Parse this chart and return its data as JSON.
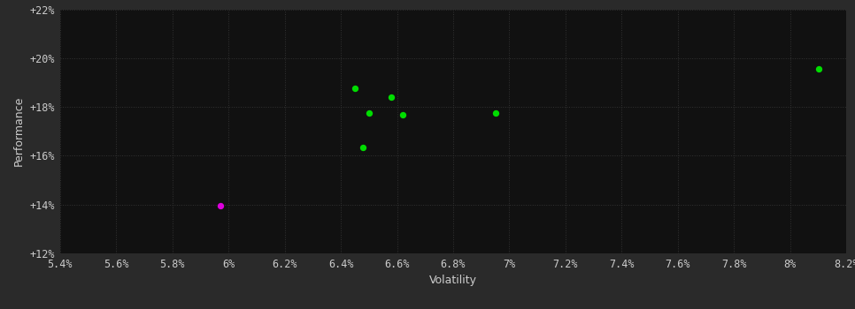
{
  "background_color": "#2a2a2a",
  "plot_bg_color": "#111111",
  "grid_color": "#333333",
  "text_color": "#cccccc",
  "xlabel": "Volatility",
  "ylabel": "Performance",
  "xlim": [
    0.054,
    0.082
  ],
  "ylim": [
    0.12,
    0.22
  ],
  "xticks": [
    0.054,
    0.056,
    0.058,
    0.06,
    0.062,
    0.064,
    0.066,
    0.068,
    0.07,
    0.072,
    0.074,
    0.076,
    0.078,
    0.08,
    0.082
  ],
  "yticks": [
    0.12,
    0.14,
    0.16,
    0.18,
    0.2,
    0.22
  ],
  "green_points": [
    [
      0.0645,
      0.1875
    ],
    [
      0.0658,
      0.184
    ],
    [
      0.065,
      0.1775
    ],
    [
      0.0662,
      0.1768
    ],
    [
      0.0648,
      0.1635
    ],
    [
      0.0695,
      0.1775
    ],
    [
      0.081,
      0.1955
    ]
  ],
  "magenta_points": [
    [
      0.0597,
      0.1395
    ]
  ],
  "green_color": "#00dd00",
  "magenta_color": "#dd00dd",
  "marker_size": 28
}
